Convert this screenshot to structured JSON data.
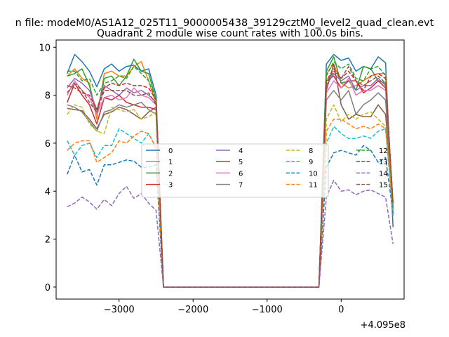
{
  "chart_data": {
    "type": "line",
    "suptitle": "n file: modeM0/AS1A12_025T11_9000005438_39129cztM0_level2_quad_clean.evt",
    "title": "Quadrant 2 module wise count rates with 100.0s bins.",
    "xlabel": "",
    "ylabel": "",
    "offset_label": "+4.095e8",
    "xlim": [
      -3850,
      850
    ],
    "ylim": [
      -0.5,
      10.3
    ],
    "xticks": [
      -3000,
      -2000,
      -1000,
      0
    ],
    "xtick_labels": [
      "−3000",
      "−2000",
      "−1000",
      "0"
    ],
    "yticks": [
      0,
      2,
      4,
      6,
      8,
      10
    ],
    "ytick_labels": [
      "0",
      "2",
      "4",
      "6",
      "8",
      "10"
    ],
    "grid": false,
    "legend_position": "center",
    "legend_columns": 4,
    "x": [
      -3700,
      -3600,
      -3500,
      -3400,
      -3300,
      -3200,
      -3100,
      -3000,
      -2900,
      -2800,
      -2700,
      -2600,
      -2500,
      -2400,
      -2300,
      -2200,
      -2100,
      -2000,
      -1900,
      -1800,
      -1700,
      -1600,
      -1500,
      -1400,
      -1300,
      -1200,
      -1100,
      -1000,
      -900,
      -800,
      -700,
      -600,
      -500,
      -400,
      -300,
      -200,
      -100,
      0,
      100,
      200,
      300,
      400,
      500,
      600,
      700
    ],
    "series": [
      {
        "name": "0",
        "color": "#1f77b4",
        "dash": "solid",
        "values": [
          8.9,
          9.7,
          9.4,
          9.0,
          8.35,
          9.1,
          9.3,
          9.0,
          9.2,
          9.25,
          9.0,
          9.1,
          8.0,
          0,
          0,
          0,
          0,
          0,
          0,
          0,
          0,
          0,
          0,
          0,
          0,
          0,
          0,
          0,
          0,
          0,
          0,
          0,
          0,
          0,
          0,
          9.3,
          9.7,
          9.45,
          9.55,
          9.0,
          9.2,
          9.1,
          9.6,
          9.35,
          2.5
        ]
      },
      {
        "name": "1",
        "color": "#ff7f0e",
        "dash": "solid",
        "values": [
          8.8,
          9.1,
          8.7,
          8.5,
          7.0,
          8.9,
          9.0,
          8.8,
          8.8,
          9.2,
          9.4,
          8.6,
          7.6,
          0,
          0,
          0,
          0,
          0,
          0,
          0,
          0,
          0,
          0,
          0,
          0,
          0,
          0,
          0,
          0,
          0,
          0,
          0,
          0,
          0,
          0,
          8.9,
          9.3,
          8.5,
          8.3,
          8.4,
          8.6,
          8.8,
          8.9,
          8.9,
          3.3
        ]
      },
      {
        "name": "2",
        "color": "#2ca02c",
        "dash": "solid",
        "values": [
          8.8,
          8.9,
          9.1,
          8.4,
          7.2,
          8.7,
          8.8,
          8.4,
          8.8,
          9.5,
          9.0,
          8.9,
          7.8,
          0,
          0,
          0,
          0,
          0,
          0,
          0,
          0,
          0,
          0,
          0,
          0,
          0,
          0,
          0,
          0,
          0,
          0,
          0,
          0,
          0,
          0,
          9.0,
          9.6,
          8.5,
          8.6,
          8.2,
          9.2,
          9.1,
          8.6,
          8.5,
          3.0
        ]
      },
      {
        "name": "3",
        "color": "#d62728",
        "dash": "solid",
        "values": [
          7.7,
          8.5,
          8.0,
          7.6,
          6.8,
          7.9,
          7.8,
          8.0,
          7.7,
          7.6,
          7.5,
          7.5,
          7.4,
          0,
          0,
          0,
          0,
          0,
          0,
          0,
          0,
          0,
          0,
          0,
          0,
          0,
          0,
          0,
          0,
          0,
          0,
          0,
          0,
          0,
          0,
          8.6,
          8.8,
          8.3,
          8.6,
          8.6,
          8.1,
          8.3,
          8.6,
          8.3,
          3.4
        ]
      },
      {
        "name": "4",
        "color": "#9467bd",
        "dash": "solid",
        "values": [
          8.3,
          8.7,
          8.5,
          8.2,
          7.4,
          8.4,
          8.2,
          8.0,
          8.3,
          8.1,
          8.2,
          8.0,
          7.7,
          0,
          0,
          0,
          0,
          0,
          0,
          0,
          0,
          0,
          0,
          0,
          0,
          0,
          0,
          0,
          0,
          0,
          0,
          0,
          0,
          0,
          0,
          8.4,
          8.9,
          8.6,
          8.8,
          8.2,
          8.4,
          8.4,
          8.7,
          8.4,
          3.5
        ]
      },
      {
        "name": "5",
        "color": "#8c564b",
        "dash": "solid",
        "values": [
          7.45,
          7.4,
          7.35,
          7.0,
          6.6,
          7.2,
          7.3,
          7.5,
          7.4,
          7.2,
          7.0,
          7.3,
          7.5,
          0,
          0,
          0,
          0,
          0,
          0,
          0,
          0,
          0,
          0,
          0,
          0,
          0,
          0,
          0,
          0,
          0,
          0,
          0,
          0,
          0,
          0,
          8.2,
          9.3,
          7.6,
          7.0,
          7.2,
          7.1,
          7.1,
          7.6,
          7.2,
          3.5
        ]
      },
      {
        "name": "6",
        "color": "#e377c2",
        "dash": "solid",
        "values": [
          8.0,
          8.6,
          8.2,
          7.9,
          7.2,
          7.9,
          8.0,
          7.8,
          7.9,
          8.3,
          8.0,
          7.9,
          7.6,
          0,
          0,
          0,
          0,
          0,
          0,
          0,
          0,
          0,
          0,
          0,
          0,
          0,
          0,
          0,
          0,
          0,
          0,
          0,
          0,
          0,
          0,
          8.1,
          8.6,
          8.3,
          8.7,
          8.0,
          8.2,
          8.2,
          8.4,
          8.2,
          3.4
        ]
      },
      {
        "name": "7",
        "color": "#7f7f7f",
        "dash": "solid",
        "values": [
          7.6,
          7.5,
          7.3,
          6.9,
          6.5,
          7.3,
          7.4,
          7.6,
          7.5,
          7.6,
          7.7,
          7.4,
          7.2,
          0,
          0,
          0,
          0,
          0,
          0,
          0,
          0,
          0,
          0,
          0,
          0,
          0,
          0,
          0,
          0,
          0,
          0,
          0,
          0,
          0,
          0,
          7.8,
          8.2,
          7.8,
          8.2,
          7.2,
          7.6,
          7.8,
          8.1,
          7.8,
          3.2
        ]
      },
      {
        "name": "8",
        "color": "#bcbd22",
        "dash": "dashed",
        "values": [
          7.2,
          7.6,
          7.5,
          6.8,
          6.5,
          6.4,
          7.5,
          7.4,
          7.3,
          7.4,
          7.0,
          7.1,
          7.3,
          0,
          0,
          0,
          0,
          0,
          0,
          0,
          0,
          0,
          0,
          0,
          0,
          0,
          0,
          0,
          0,
          0,
          0,
          0,
          0,
          0,
          0,
          7.0,
          7.6,
          6.9,
          7.2,
          7.0,
          7.2,
          7.3,
          7.0,
          6.7,
          3.2
        ]
      },
      {
        "name": "9",
        "color": "#17becf",
        "dash": "dashed",
        "values": [
          6.1,
          5.5,
          5.9,
          6.0,
          5.4,
          5.9,
          5.9,
          6.6,
          6.4,
          6.2,
          6.0,
          6.4,
          5.8,
          0,
          0,
          0,
          0,
          0,
          0,
          0,
          0,
          0,
          0,
          0,
          0,
          0,
          0,
          0,
          0,
          0,
          0,
          0,
          0,
          0,
          0,
          6.0,
          6.7,
          6.4,
          6.2,
          6.2,
          6.3,
          6.2,
          6.5,
          6.6,
          3.0
        ]
      },
      {
        "name": "10",
        "color": "#1f77b4",
        "dash": "dashed",
        "values": [
          4.7,
          5.5,
          4.8,
          4.9,
          4.25,
          5.1,
          5.1,
          5.2,
          5.3,
          5.25,
          5.0,
          5.0,
          5.1,
          0,
          0,
          0,
          0,
          0,
          0,
          0,
          0,
          0,
          0,
          0,
          0,
          0,
          0,
          0,
          0,
          0,
          0,
          0,
          0,
          0,
          0,
          5.0,
          5.6,
          5.7,
          5.6,
          5.5,
          5.9,
          5.7,
          5.2,
          5.4,
          3.1
        ]
      },
      {
        "name": "11",
        "color": "#ff7f0e",
        "dash": "dashed",
        "values": [
          5.7,
          6.0,
          6.1,
          6.1,
          5.2,
          5.4,
          5.6,
          6.1,
          6.0,
          6.3,
          6.5,
          6.4,
          5.8,
          0,
          0,
          0,
          0,
          0,
          0,
          0,
          0,
          0,
          0,
          0,
          0,
          0,
          0,
          0,
          0,
          0,
          0,
          0,
          0,
          0,
          0,
          6.5,
          7.0,
          7.0,
          6.8,
          6.6,
          6.7,
          6.6,
          6.8,
          6.6,
          3.2
        ]
      },
      {
        "name": "12",
        "color": "#2ca02c",
        "dash": "dashed",
        "values": [
          9.0,
          9.0,
          8.6,
          8.7,
          8.0,
          8.5,
          8.6,
          8.8,
          8.7,
          9.2,
          8.9,
          8.6,
          7.8,
          0,
          0,
          0,
          0,
          0,
          0,
          0,
          0,
          0,
          0,
          0,
          0,
          0,
          0,
          0,
          0,
          0,
          0,
          0,
          0,
          0,
          0,
          8.8,
          9.4,
          9.1,
          9.3,
          8.7,
          8.6,
          9.1,
          9.2,
          8.8,
          3.2
        ]
      },
      {
        "name": "13",
        "color": "#d62728",
        "dash": "dashed",
        "values": [
          8.4,
          8.3,
          8.1,
          8.0,
          7.4,
          8.3,
          8.5,
          8.4,
          8.5,
          8.4,
          8.4,
          8.3,
          7.8,
          0,
          0,
          0,
          0,
          0,
          0,
          0,
          0,
          0,
          0,
          0,
          0,
          0,
          0,
          0,
          0,
          0,
          0,
          0,
          0,
          0,
          0,
          8.6,
          9.1,
          8.7,
          9.0,
          8.6,
          8.2,
          8.8,
          8.9,
          8.7,
          3.5
        ]
      },
      {
        "name": "14",
        "color": "#9467bd",
        "dash": "dashed",
        "values": [
          3.35,
          3.5,
          3.75,
          3.55,
          3.25,
          3.65,
          3.4,
          3.9,
          4.2,
          3.7,
          3.9,
          3.5,
          3.2,
          0,
          0,
          0,
          0,
          0,
          0,
          0,
          0,
          0,
          0,
          0,
          0,
          0,
          0,
          0,
          0,
          0,
          0,
          0,
          0,
          0,
          0,
          3.75,
          4.45,
          4.0,
          4.05,
          3.85,
          4.0,
          4.05,
          3.9,
          3.75,
          1.8
        ]
      },
      {
        "name": "15",
        "color": "#8c564b",
        "dash": "dashed",
        "values": [
          8.1,
          8.5,
          8.2,
          7.7,
          7.3,
          8.2,
          8.2,
          8.2,
          8.2,
          8.0,
          8.0,
          8.1,
          7.6,
          0,
          0,
          0,
          0,
          0,
          0,
          0,
          0,
          0,
          0,
          0,
          0,
          0,
          0,
          0,
          0,
          0,
          0,
          0,
          0,
          0,
          0,
          8.5,
          9.0,
          8.7,
          9.2,
          8.6,
          8.4,
          8.6,
          8.8,
          8.5,
          3.5
        ]
      }
    ]
  }
}
